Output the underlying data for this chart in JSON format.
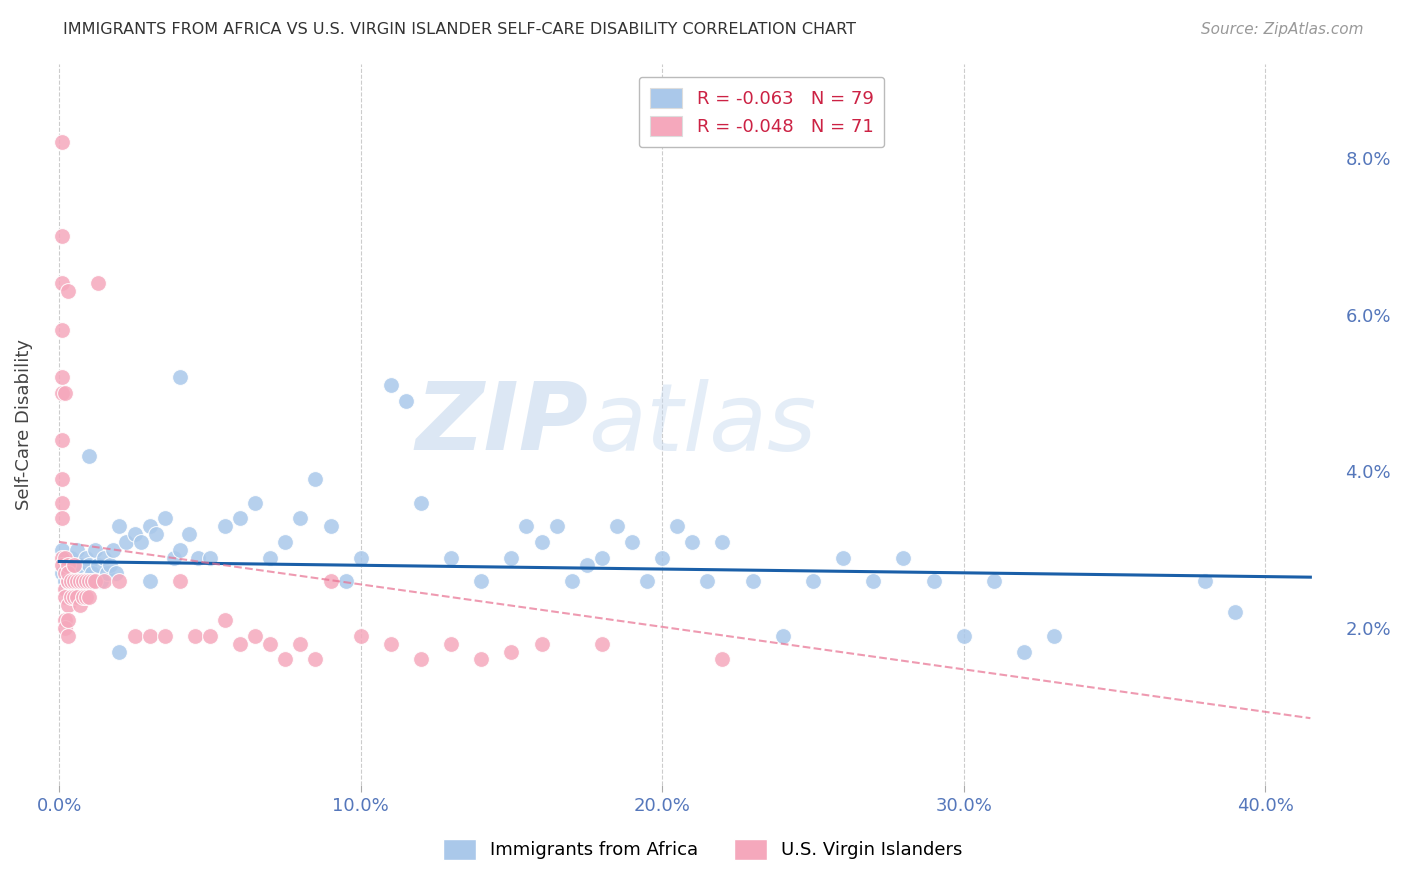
{
  "title": "IMMIGRANTS FROM AFRICA VS U.S. VIRGIN ISLANDER SELF-CARE DISABILITY CORRELATION CHART",
  "source": "Source: ZipAtlas.com",
  "ylabel": "Self-Care Disability",
  "x_ticks": [
    0.0,
    0.1,
    0.2,
    0.3,
    0.4
  ],
  "x_tick_labels": [
    "0.0%",
    "10.0%",
    "20.0%",
    "30.0%",
    "40.0%"
  ],
  "y_ticks": [
    0.02,
    0.04,
    0.06,
    0.08
  ],
  "y_tick_labels": [
    "2.0%",
    "4.0%",
    "6.0%",
    "8.0%"
  ],
  "xlim": [
    -0.005,
    0.425
  ],
  "ylim": [
    0.0,
    0.092
  ],
  "legend1_label": "R = -0.063   N = 79",
  "legend2_label": "R = -0.048   N = 71",
  "legend1_color": "#aac8ea",
  "legend2_color": "#f5a8bc",
  "trendline1_color": "#1a5fa8",
  "trendline2_color": "#e87090",
  "background_color": "#ffffff",
  "grid_color": "#cccccc",
  "blue_scatter_color": "#aac8ea",
  "pink_scatter_color": "#f5a8bc",
  "blue_points_x": [
    0.001,
    0.001,
    0.002,
    0.003,
    0.004,
    0.005,
    0.006,
    0.007,
    0.008,
    0.009,
    0.01,
    0.011,
    0.012,
    0.013,
    0.014,
    0.015,
    0.016,
    0.017,
    0.018,
    0.019,
    0.02,
    0.022,
    0.025,
    0.027,
    0.03,
    0.032,
    0.035,
    0.038,
    0.04,
    0.043,
    0.046,
    0.05,
    0.055,
    0.06,
    0.065,
    0.07,
    0.075,
    0.08,
    0.085,
    0.09,
    0.095,
    0.1,
    0.11,
    0.115,
    0.12,
    0.13,
    0.14,
    0.15,
    0.155,
    0.16,
    0.165,
    0.17,
    0.175,
    0.18,
    0.185,
    0.19,
    0.195,
    0.2,
    0.205,
    0.21,
    0.215,
    0.22,
    0.23,
    0.24,
    0.25,
    0.26,
    0.27,
    0.28,
    0.29,
    0.3,
    0.31,
    0.32,
    0.33,
    0.38,
    0.39,
    0.01,
    0.02,
    0.03,
    0.04
  ],
  "blue_points_y": [
    0.027,
    0.03,
    0.026,
    0.028,
    0.029,
    0.027,
    0.03,
    0.028,
    0.026,
    0.029,
    0.028,
    0.027,
    0.03,
    0.028,
    0.026,
    0.029,
    0.027,
    0.028,
    0.03,
    0.027,
    0.033,
    0.031,
    0.032,
    0.031,
    0.033,
    0.032,
    0.034,
    0.029,
    0.03,
    0.032,
    0.029,
    0.029,
    0.033,
    0.034,
    0.036,
    0.029,
    0.031,
    0.034,
    0.039,
    0.033,
    0.026,
    0.029,
    0.051,
    0.049,
    0.036,
    0.029,
    0.026,
    0.029,
    0.033,
    0.031,
    0.033,
    0.026,
    0.028,
    0.029,
    0.033,
    0.031,
    0.026,
    0.029,
    0.033,
    0.031,
    0.026,
    0.031,
    0.026,
    0.019,
    0.026,
    0.029,
    0.026,
    0.029,
    0.026,
    0.019,
    0.026,
    0.017,
    0.019,
    0.026,
    0.022,
    0.042,
    0.017,
    0.026,
    0.052
  ],
  "pink_points_x": [
    0.001,
    0.001,
    0.001,
    0.001,
    0.001,
    0.001,
    0.001,
    0.001,
    0.001,
    0.001,
    0.001,
    0.001,
    0.002,
    0.002,
    0.002,
    0.002,
    0.002,
    0.002,
    0.003,
    0.003,
    0.003,
    0.003,
    0.003,
    0.003,
    0.003,
    0.003,
    0.004,
    0.004,
    0.005,
    0.005,
    0.005,
    0.006,
    0.006,
    0.007,
    0.007,
    0.008,
    0.008,
    0.009,
    0.009,
    0.01,
    0.01,
    0.011,
    0.012,
    0.013,
    0.015,
    0.02,
    0.025,
    0.03,
    0.035,
    0.04,
    0.045,
    0.05,
    0.055,
    0.06,
    0.065,
    0.07,
    0.075,
    0.08,
    0.085,
    0.09,
    0.1,
    0.11,
    0.12,
    0.13,
    0.14,
    0.15,
    0.16,
    0.18,
    0.22,
    0.003,
    0.002
  ],
  "pink_points_y": [
    0.082,
    0.07,
    0.064,
    0.058,
    0.052,
    0.05,
    0.044,
    0.039,
    0.036,
    0.034,
    0.029,
    0.028,
    0.029,
    0.027,
    0.025,
    0.024,
    0.021,
    0.02,
    0.026,
    0.028,
    0.026,
    0.026,
    0.023,
    0.021,
    0.019,
    0.027,
    0.026,
    0.024,
    0.028,
    0.026,
    0.024,
    0.026,
    0.024,
    0.026,
    0.023,
    0.026,
    0.024,
    0.026,
    0.024,
    0.026,
    0.024,
    0.026,
    0.026,
    0.064,
    0.026,
    0.026,
    0.019,
    0.019,
    0.019,
    0.026,
    0.019,
    0.019,
    0.021,
    0.018,
    0.019,
    0.018,
    0.016,
    0.018,
    0.016,
    0.026,
    0.019,
    0.018,
    0.016,
    0.018,
    0.016,
    0.017,
    0.018,
    0.018,
    0.016,
    0.063,
    0.05
  ],
  "trendline1_x": [
    0.0,
    0.415
  ],
  "trendline1_y": [
    0.0285,
    0.0265
  ],
  "trendline2_x": [
    0.0,
    0.415
  ],
  "trendline2_y": [
    0.031,
    0.0085
  ],
  "watermark_zip": "ZIP",
  "watermark_atlas": "atlas",
  "axis_tick_color": "#5577bb"
}
